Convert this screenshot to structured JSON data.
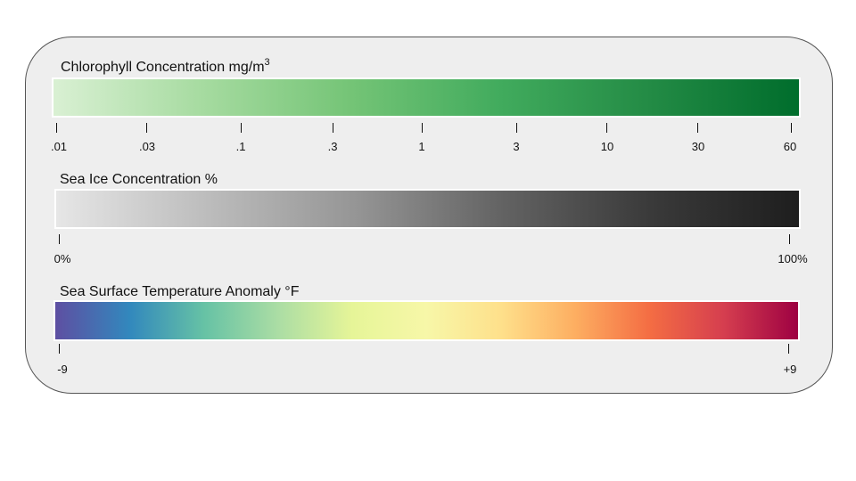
{
  "legends": [
    {
      "title": "Chlorophyll Concentration mg/m",
      "title_superscript": "3",
      "colors": [
        "#d9f0d3",
        "#a6dba0",
        "#74c476",
        "#41ab5d",
        "#238b45",
        "#006d2c"
      ],
      "ticks": [
        ".01",
        ".03",
        ".1",
        ".3",
        "1",
        "3",
        "10",
        "30",
        "60"
      ]
    },
    {
      "title": "Sea Ice Concentration %",
      "colors": [
        "#e6e6e6",
        "#bdbdbd",
        "#969696",
        "#636363",
        "#3a3a3a",
        "#1e1e1e"
      ],
      "ticks": [
        "0%",
        "100%"
      ]
    },
    {
      "title": "Sea Surface Temperature Anomaly °F",
      "colors": [
        "#5e4fa2",
        "#3288bd",
        "#66c2a5",
        "#abdda4",
        "#e6f598",
        "#f7f7a8",
        "#fee08b",
        "#fdae61",
        "#f46d43",
        "#d53e4f",
        "#9e0142"
      ],
      "ticks": [
        "-9",
        "+9"
      ]
    }
  ]
}
